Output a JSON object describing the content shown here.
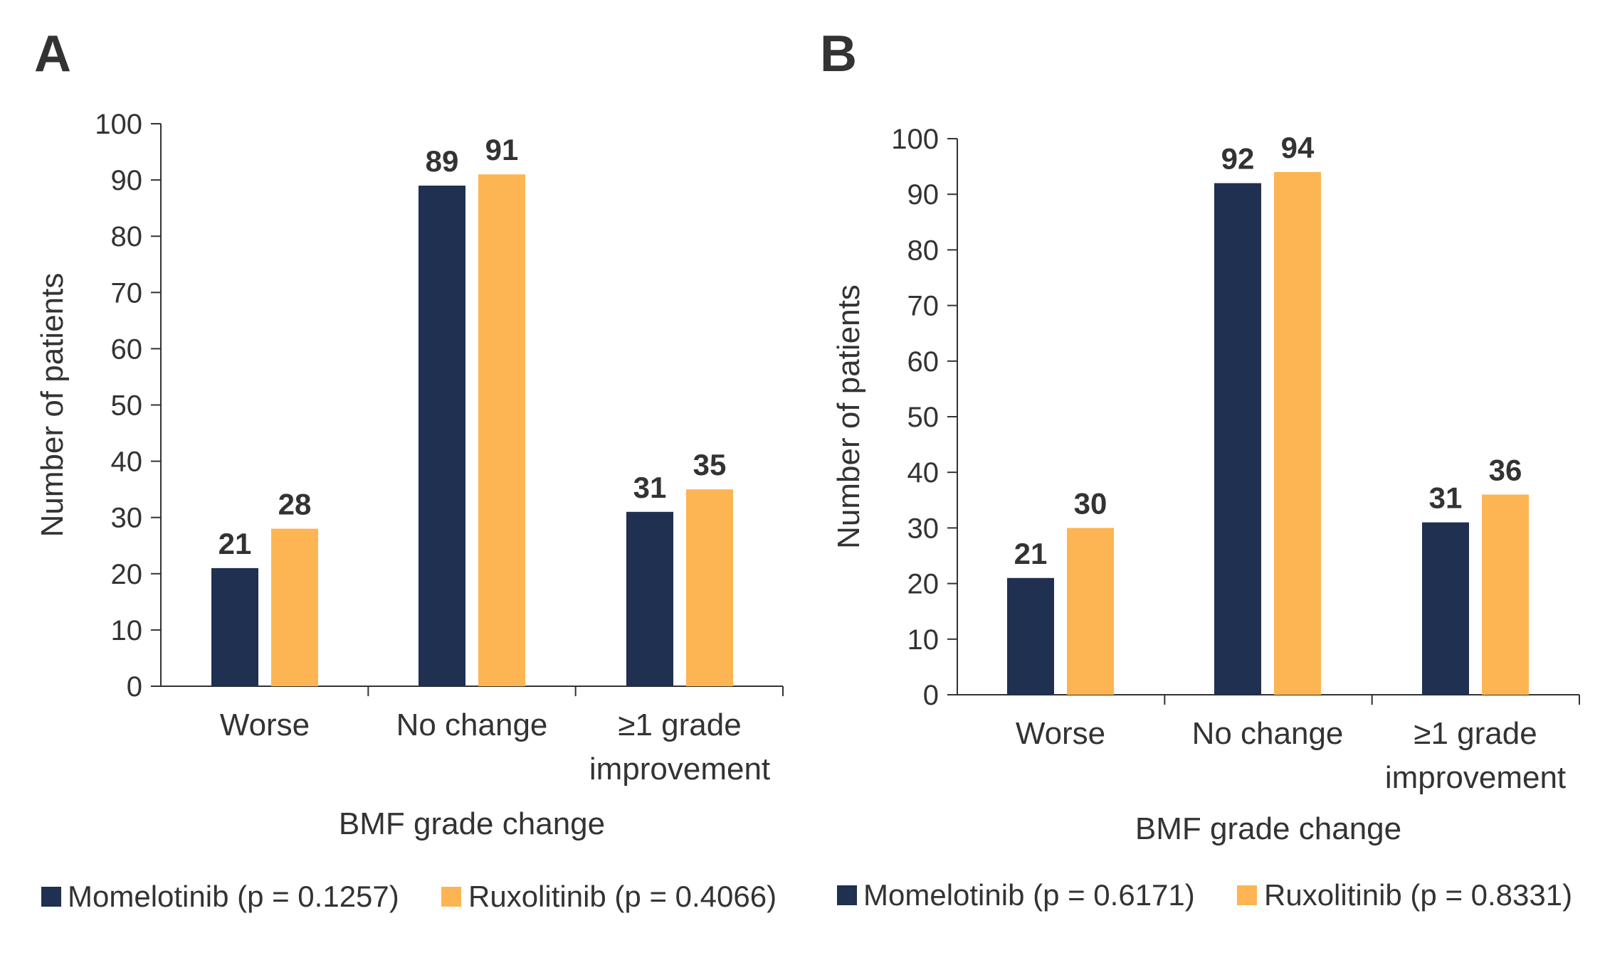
{
  "colors": {
    "momelotinib": "#1f3050",
    "ruxolitinib": "#fdb553",
    "axis": "#333333"
  },
  "chart_data": [
    {
      "panel": "A",
      "type": "bar",
      "categories": [
        "Worse",
        "No change",
        "≥1 grade improvement"
      ],
      "category_lines": [
        [
          "Worse"
        ],
        [
          "No change"
        ],
        [
          "≥1 grade",
          "improvement"
        ]
      ],
      "series": [
        {
          "name": "Momelotinib (p = 0.1257)",
          "values": [
            21,
            89,
            31
          ]
        },
        {
          "name": "Ruxolitinib (p = 0.4066)",
          "values": [
            28,
            91,
            35
          ]
        }
      ],
      "xlabel": "BMF grade change",
      "ylabel": "Number of patients",
      "ylim": [
        0,
        100
      ],
      "yticks": [
        0,
        10,
        20,
        30,
        40,
        50,
        60,
        70,
        80,
        90,
        100
      ],
      "grid": false,
      "legend": "bottom"
    },
    {
      "panel": "B",
      "type": "bar",
      "categories": [
        "Worse",
        "No change",
        "≥1 grade improvement"
      ],
      "category_lines": [
        [
          "Worse"
        ],
        [
          "No change"
        ],
        [
          "≥1 grade",
          "improvement"
        ]
      ],
      "series": [
        {
          "name": "Momelotinib (p = 0.6171)",
          "values": [
            21,
            92,
            31
          ]
        },
        {
          "name": "Ruxolitinib (p = 0.8331)",
          "values": [
            30,
            94,
            36
          ]
        }
      ],
      "xlabel": "BMF grade change",
      "ylabel": "Number of patients",
      "ylim": [
        0,
        100
      ],
      "yticks": [
        0,
        10,
        20,
        30,
        40,
        50,
        60,
        70,
        80,
        90,
        100
      ],
      "grid": false,
      "legend": "bottom"
    }
  ]
}
